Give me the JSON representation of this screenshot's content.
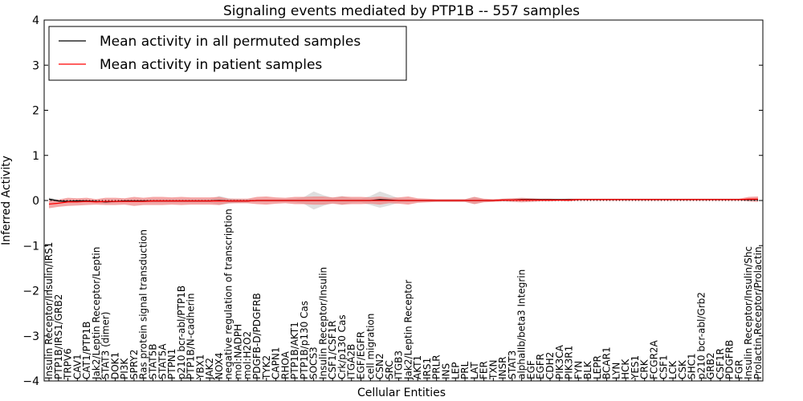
{
  "chart_data": {
    "type": "line",
    "title": "Signaling events mediated by PTP1B -- 557 samples",
    "xlabel": "Cellular Entities",
    "ylabel": "Inferred Activity",
    "ylim": [
      -4,
      4
    ],
    "yticks": [
      -4,
      -3,
      -2,
      -1,
      0,
      1,
      2,
      3,
      4
    ],
    "ytick_labels": [
      "−4",
      "−3",
      "−2",
      "−1",
      "0",
      "1",
      "2",
      "3",
      "4"
    ],
    "grid": false,
    "legend_position": "top-left",
    "colors": {
      "permuted": "#000000",
      "patient": "#ff0000",
      "patient_band": "#f08080",
      "permuted_band": "#c8c8c8"
    },
    "categories": [
      "Insulin Receptor/Insulin/IRS1",
      "PTP1B/IRS1/GRB2",
      "TRPV6",
      "CAV1",
      "CAT1/PTP1B",
      "Jak2/Leptin Receptor/Leptin",
      "STAT3 (dimer)",
      "DOK1",
      "PI3K",
      "SPRY2",
      "Ras protein signal transduction",
      "STAT5B",
      "STAT5A",
      "PTPN1",
      "p210 bcr-abl/PTP1B",
      "PTP1B/N-cadherin",
      "YBX1",
      "JAK2",
      "NOX4",
      "negative regulation of transcription",
      "mol:NADPH",
      "mol:H2O2",
      "PDGFB-D/PDGFRB",
      "TYK2",
      "CAPN1",
      "RHOA",
      "PTP1B/AKT1",
      "PTP1B/p130 Cas",
      "SOCS3",
      "Insulin Receptor/Insulin",
      "CSF1/CSF1R",
      "Crk/p130 Cas",
      "ITGA2B",
      "EGF/EGFR",
      "cell migration",
      "CSN2",
      "SRC",
      "ITGB3",
      "Jak2/Leptin Receptor",
      "AKT1",
      "IRS1",
      "PRLR",
      "INS",
      "LEP",
      "PRL",
      "LAT",
      "FER",
      "TXN",
      "INSR",
      "STAT3",
      "alphaIIb/beta3 Integrin",
      "EGF",
      "EGFR",
      "CDH2",
      "PIK3CA",
      "PIK3R1",
      "FYN",
      "BLK",
      "LEPR",
      "BCAR1",
      "LYN",
      "HCK",
      "YES1",
      "CRK",
      "FCGR2A",
      "CSF1",
      "LCK",
      "CSK",
      "SHC1",
      "p210 bcr-abl/Grb2",
      "GRB2",
      "CSF1R",
      "PDGFRB",
      "FGR",
      "Insulin Receptor/Insulin/Shc",
      "Prolactin Receptor/Prolactin"
    ],
    "series": [
      {
        "name": "Mean activity in all permuted samples",
        "values": [
          0.03,
          -0.01,
          -0.02,
          -0.01,
          -0.01,
          -0.02,
          -0.03,
          -0.02,
          -0.01,
          -0.01,
          -0.01,
          -0.01,
          -0.01,
          -0.01,
          -0.01,
          -0.01,
          -0.01,
          -0.01,
          0.0,
          -0.01,
          -0.01,
          -0.01,
          0.0,
          0.0,
          0.0,
          0.0,
          0.0,
          0.0,
          0.0,
          0.0,
          0.0,
          0.0,
          0.0,
          0.0,
          0.0,
          0.02,
          0.01,
          0.0,
          0.0,
          0.0,
          0.0,
          0.0,
          0.0,
          0.0,
          0.0,
          0.0,
          0.0,
          0.0,
          0.01,
          0.01,
          0.02,
          0.02,
          0.02,
          0.02,
          0.02,
          0.02,
          0.02,
          0.02,
          0.02,
          0.02,
          0.02,
          0.02,
          0.02,
          0.02,
          0.02,
          0.02,
          0.02,
          0.02,
          0.02,
          0.02,
          0.02,
          0.02,
          0.02,
          0.02,
          0.02,
          0.02
        ],
        "band": [
          0.04,
          0.03,
          0.03,
          0.03,
          0.03,
          0.03,
          0.04,
          0.03,
          0.03,
          0.03,
          0.03,
          0.03,
          0.03,
          0.03,
          0.03,
          0.03,
          0.03,
          0.03,
          0.1,
          0.06,
          0.04,
          0.03,
          0.03,
          0.03,
          0.03,
          0.03,
          0.04,
          0.08,
          0.2,
          0.12,
          0.06,
          0.1,
          0.05,
          0.04,
          0.1,
          0.18,
          0.12,
          0.05,
          0.04,
          0.03,
          0.03,
          0.03,
          0.03,
          0.03,
          0.03,
          0.08,
          0.03,
          0.02,
          0.02,
          0.02,
          0.03,
          0.03,
          0.02,
          0.02,
          0.02,
          0.02,
          0.02,
          0.02,
          0.02,
          0.02,
          0.02,
          0.02,
          0.02,
          0.02,
          0.02,
          0.02,
          0.02,
          0.02,
          0.02,
          0.02,
          0.02,
          0.02,
          0.02,
          0.02,
          0.02,
          0.02
        ]
      },
      {
        "name": "Mean activity in patient samples",
        "values": [
          -0.08,
          -0.06,
          -0.03,
          -0.03,
          -0.02,
          -0.03,
          -0.02,
          -0.02,
          -0.02,
          -0.02,
          -0.02,
          -0.01,
          -0.01,
          -0.01,
          -0.01,
          -0.01,
          -0.01,
          -0.01,
          -0.01,
          -0.01,
          -0.01,
          -0.01,
          0.0,
          0.0,
          0.0,
          0.0,
          0.0,
          0.0,
          0.0,
          0.0,
          0.0,
          0.0,
          0.0,
          0.0,
          0.0,
          0.0,
          0.0,
          0.0,
          0.0,
          0.0,
          0.0,
          0.0,
          0.0,
          0.0,
          0.0,
          0.0,
          0.0,
          0.0,
          0.01,
          0.01,
          0.01,
          0.01,
          0.01,
          0.01,
          0.01,
          0.01,
          0.02,
          0.02,
          0.02,
          0.02,
          0.02,
          0.02,
          0.02,
          0.02,
          0.02,
          0.02,
          0.02,
          0.02,
          0.02,
          0.02,
          0.02,
          0.02,
          0.02,
          0.02,
          0.03,
          0.03
        ],
        "band": [
          0.09,
          0.08,
          0.09,
          0.08,
          0.08,
          0.06,
          0.08,
          0.08,
          0.07,
          0.1,
          0.08,
          0.09,
          0.09,
          0.08,
          0.09,
          0.08,
          0.08,
          0.08,
          0.09,
          0.05,
          0.05,
          0.05,
          0.08,
          0.09,
          0.07,
          0.06,
          0.08,
          0.08,
          0.09,
          0.09,
          0.07,
          0.09,
          0.08,
          0.08,
          0.07,
          0.09,
          0.06,
          0.07,
          0.09,
          0.05,
          0.04,
          0.03,
          0.03,
          0.03,
          0.03,
          0.08,
          0.04,
          0.03,
          0.03,
          0.04,
          0.05,
          0.04,
          0.03,
          0.03,
          0.02,
          0.03,
          0.02,
          0.02,
          0.02,
          0.02,
          0.02,
          0.02,
          0.02,
          0.02,
          0.02,
          0.02,
          0.02,
          0.02,
          0.02,
          0.02,
          0.02,
          0.02,
          0.02,
          0.02,
          0.05,
          0.06
        ]
      }
    ]
  }
}
